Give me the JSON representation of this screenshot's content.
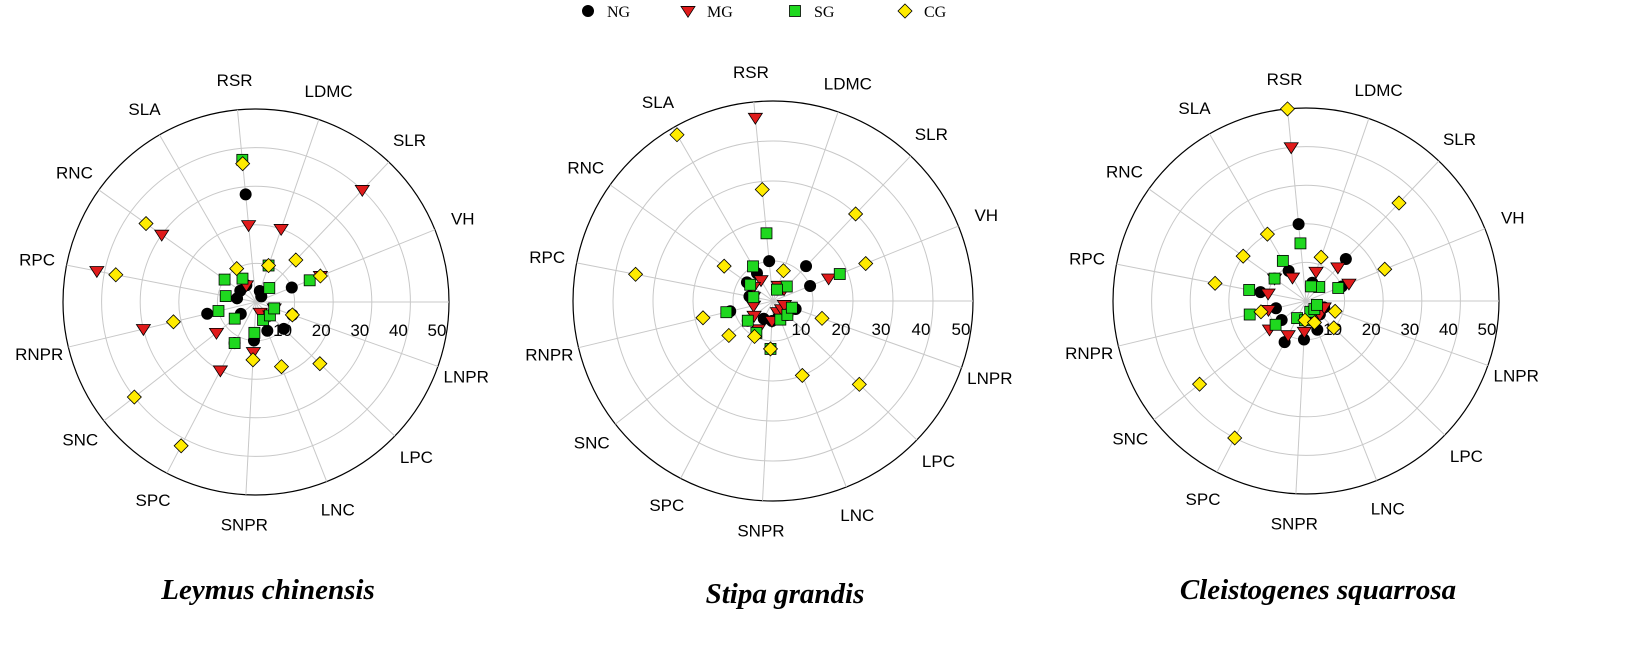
{
  "legend": [
    {
      "name": "NG",
      "marker": "circle",
      "color": "#000000"
    },
    {
      "name": "MG",
      "marker": "triangle-down",
      "color": "#e01b1b"
    },
    {
      "name": "SG",
      "marker": "square",
      "color": "#1fd81f"
    },
    {
      "name": "CG",
      "marker": "diamond",
      "color": "#ffeb00"
    }
  ],
  "chart_data": [
    {
      "type": "scatter",
      "subtype": "polar",
      "title": "Leymus chinensis",
      "axes": [
        "VH",
        "SLR",
        "LDMC",
        "RSR",
        "SLA",
        "RNC",
        "RPC",
        "RNPR",
        "SNC",
        "SPC",
        "SNPR",
        "LNC",
        "LPC",
        "LNPR"
      ],
      "radial_ticks": [
        10,
        20,
        30,
        40,
        50
      ],
      "rlim": [
        0,
        50
      ],
      "grid": true,
      "series": [
        {
          "name": "NG",
          "values": [
            10,
            2,
            3,
            28,
            5,
            5,
            5,
            13,
            5,
            12,
            10,
            8,
            10,
            10
          ]
        },
        {
          "name": "MG",
          "values": [
            18,
            40,
            20,
            20,
            5,
            30,
            42,
            30,
            13,
            20,
            13,
            3,
            5,
            5
          ]
        },
        {
          "name": "SG",
          "values": [
            15,
            5,
            10,
            37,
            7,
            10,
            8,
            10,
            7,
            12,
            8,
            5,
            5,
            5
          ]
        },
        {
          "name": "CG",
          "values": [
            18,
            15,
            10,
            36,
            10,
            35,
            37,
            22,
            40,
            42,
            15,
            18,
            23,
            10
          ]
        }
      ]
    },
    {
      "type": "scatter",
      "subtype": "polar",
      "title": "Stipa grandis",
      "axes": [
        "VH",
        "SLR",
        "LDMC",
        "RSR",
        "SLA",
        "RNC",
        "RPC",
        "RNPR",
        "SNC",
        "SPC",
        "SNPR",
        "LNC",
        "LPC",
        "LNPR"
      ],
      "radial_ticks": [
        10,
        20,
        30,
        40,
        50
      ],
      "rlim": [
        0,
        50
      ],
      "grid": true,
      "series": [
        {
          "name": "NG",
          "values": [
            10,
            12,
            3,
            10,
            8,
            8,
            6,
            11,
            8,
            5,
            5,
            4,
            5,
            6
          ]
        },
        {
          "name": "MG",
          "values": [
            15,
            4,
            4,
            46,
            6,
            6,
            5,
            5,
            6,
            8,
            5,
            3,
            3,
            3
          ]
        },
        {
          "name": "SG",
          "values": [
            18,
            5,
            3,
            17,
            10,
            7,
            5,
            12,
            8,
            9,
            12,
            5,
            5,
            5
          ]
        },
        {
          "name": "CG",
          "values": [
            25,
            30,
            8,
            28,
            48,
            15,
            35,
            18,
            14,
            10,
            12,
            20,
            30,
            13
          ]
        }
      ]
    },
    {
      "type": "scatter",
      "subtype": "polar",
      "title": "Cleistogenes squarrosa",
      "axes": [
        "VH",
        "SLR",
        "LDMC",
        "RSR",
        "SLA",
        "RNC",
        "RPC",
        "RNPR",
        "SNC",
        "SPC",
        "SNPR",
        "LNC",
        "LPC",
        "LNPR"
      ],
      "radial_ticks": [
        10,
        20,
        30,
        40,
        50
      ],
      "rlim": [
        0,
        50
      ],
      "grid": true,
      "series": [
        {
          "name": "NG",
          "values": [
            10,
            15,
            5,
            20,
            9,
            10,
            12,
            8,
            8,
            12,
            10,
            8,
            5,
            5
          ]
        },
        {
          "name": "MG",
          "values": [
            12,
            12,
            8,
            40,
            7,
            10,
            10,
            10,
            12,
            10,
            8,
            5,
            5,
            5
          ]
        },
        {
          "name": "SG",
          "values": [
            9,
            5,
            4,
            15,
            12,
            10,
            15,
            15,
            10,
            5,
            5,
            3,
            3,
            3
          ]
        },
        {
          "name": "CG",
          "values": [
            22,
            35,
            12,
            50,
            20,
            20,
            24,
            12,
            35,
            40,
            5,
            6,
            10,
            8
          ]
        }
      ]
    }
  ]
}
